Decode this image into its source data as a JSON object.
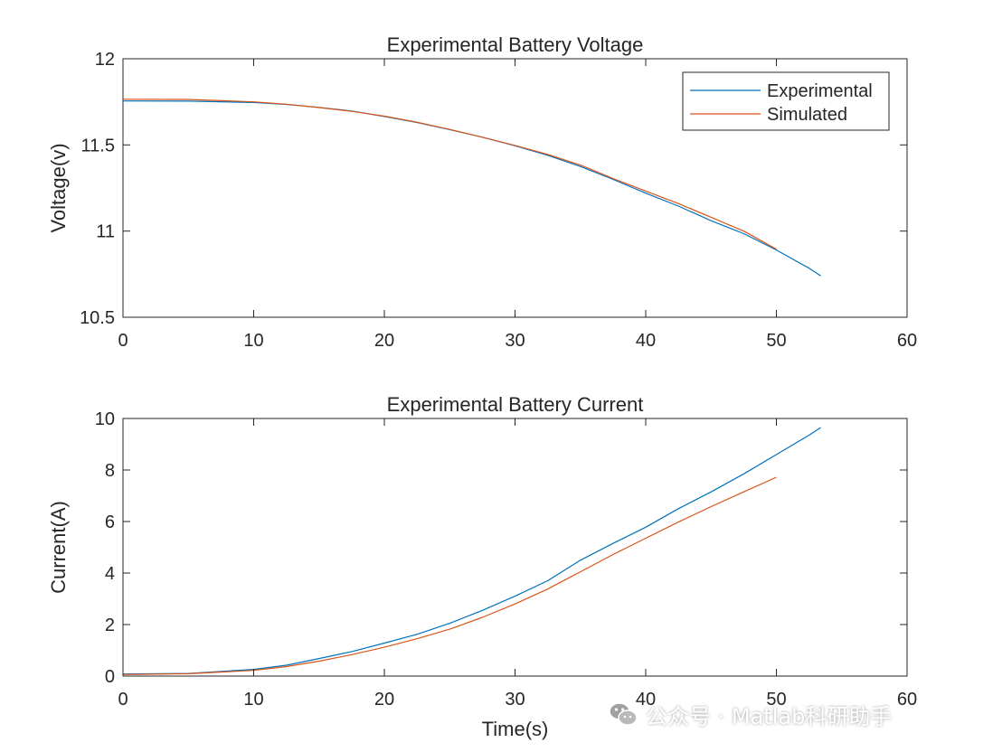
{
  "chart_data": [
    {
      "type": "line",
      "title": "Experimental Battery Voltage",
      "xlabel": "",
      "ylabel": "Voltage(v)",
      "xlim": [
        0,
        60
      ],
      "ylim": [
        10.5,
        12
      ],
      "xticks": [
        0,
        10,
        20,
        30,
        40,
        50,
        60
      ],
      "yticks": [
        10.5,
        11,
        11.5,
        12
      ],
      "grid": false,
      "legend": "top-right",
      "series": [
        {
          "name": "Experimental",
          "color": "#0072BD",
          "x": [
            0,
            5,
            10,
            12.5,
            15,
            17.5,
            20,
            22.5,
            25,
            27.5,
            30,
            32.5,
            35,
            37.5,
            40,
            42.5,
            45,
            47.5,
            50,
            52.5,
            53.4
          ],
          "y": [
            11.755,
            11.754,
            11.746,
            11.735,
            11.718,
            11.697,
            11.665,
            11.63,
            11.589,
            11.545,
            11.495,
            11.44,
            11.375,
            11.3,
            11.22,
            11.145,
            11.06,
            10.985,
            10.89,
            10.785,
            10.74
          ]
        },
        {
          "name": "Simulated",
          "color": "#D95319",
          "x": [
            0,
            5,
            10,
            12.5,
            15,
            17.5,
            20,
            22.5,
            25,
            27.5,
            30,
            32.5,
            35,
            37.5,
            40,
            42.5,
            45,
            47.5,
            50
          ],
          "y": [
            11.765,
            11.764,
            11.75,
            11.736,
            11.717,
            11.695,
            11.667,
            11.632,
            11.59,
            11.545,
            11.497,
            11.445,
            11.383,
            11.305,
            11.232,
            11.16,
            11.08,
            11.0,
            10.895
          ]
        }
      ]
    },
    {
      "type": "line",
      "title": "Experimental Battery Current",
      "xlabel": "Time(s)",
      "ylabel": "Current(A)",
      "xlim": [
        0,
        60
      ],
      "ylim": [
        0,
        10
      ],
      "xticks": [
        0,
        10,
        20,
        30,
        40,
        50,
        60
      ],
      "yticks": [
        0,
        2,
        4,
        6,
        8,
        10
      ],
      "grid": false,
      "series": [
        {
          "name": "Experimental",
          "color": "#0072BD",
          "x": [
            0,
            5,
            10,
            12.5,
            15,
            17.5,
            20,
            22.5,
            25,
            27.5,
            30,
            32.5,
            35,
            37.5,
            40,
            42.5,
            45,
            47.5,
            50,
            52.5,
            53.4
          ],
          "y": [
            0.08,
            0.1,
            0.26,
            0.42,
            0.68,
            0.95,
            1.28,
            1.62,
            2.05,
            2.55,
            3.1,
            3.7,
            4.5,
            5.15,
            5.78,
            6.5,
            7.15,
            7.85,
            8.6,
            9.35,
            9.65
          ]
        },
        {
          "name": "Simulated",
          "color": "#D95319",
          "x": [
            0,
            5,
            10,
            12.5,
            15,
            17.5,
            20,
            22.5,
            25,
            27.5,
            30,
            32.5,
            35,
            37.5,
            40,
            42.5,
            45,
            47.5,
            50
          ],
          "y": [
            0.06,
            0.09,
            0.22,
            0.37,
            0.58,
            0.83,
            1.12,
            1.45,
            1.82,
            2.28,
            2.8,
            3.38,
            4.05,
            4.72,
            5.35,
            5.98,
            6.58,
            7.15,
            7.72
          ]
        }
      ]
    }
  ],
  "watermark": {
    "text": "公众号 · Matlab科研助手",
    "icon": "wechat-icon"
  }
}
